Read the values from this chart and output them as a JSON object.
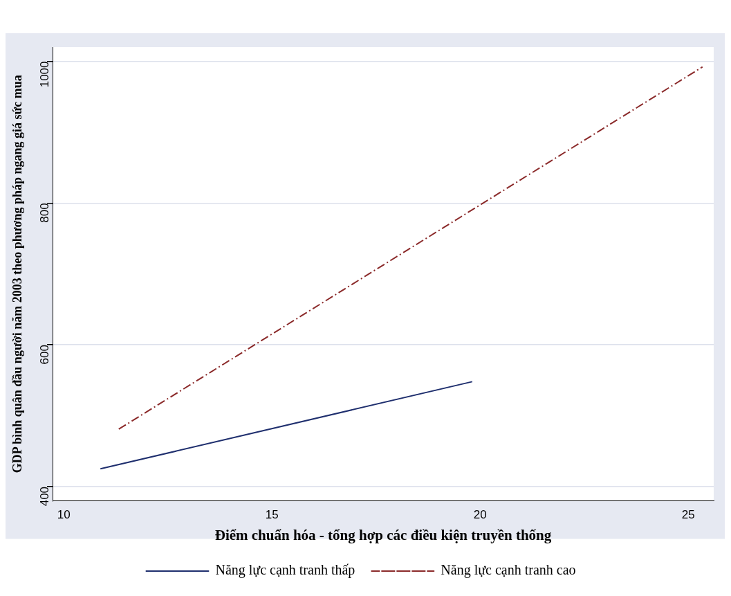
{
  "chart_data": {
    "type": "line",
    "xlabel": "Điểm chuẩn hóa - tổng hợp các điều kiện truyền thống",
    "ylabel": "GDP bình quân đầu người năm 2003 theo phương pháp ngang giá sức mua",
    "series": [
      {
        "name": "Năng lực cạnh tranh thấp",
        "color": "#1f2f6e",
        "x": [
          10.88,
          19.81
        ],
        "values": [
          425,
          548
        ],
        "line_style": "solid"
      },
      {
        "name": "Năng lực cạnh tranh cao",
        "color": "#8b2a2a",
        "x": [
          11.32,
          25.34
        ],
        "values": [
          481,
          992
        ],
        "line_style": "dashed"
      }
    ],
    "xlim": [
      9.73,
      25.61
    ],
    "xticks": [
      10,
      15,
      20,
      25
    ],
    "ylim": [
      380,
      1020
    ],
    "yticks": [
      400,
      600,
      800,
      1000
    ],
    "grid": "y",
    "legend": "bottom",
    "marker": "none"
  }
}
